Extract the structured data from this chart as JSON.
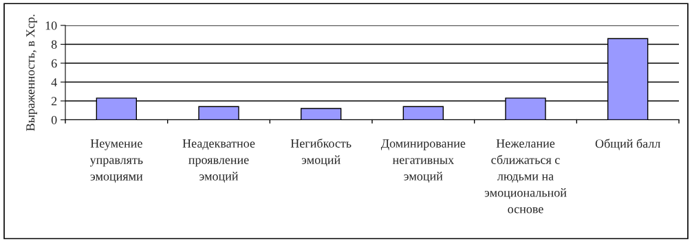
{
  "chart_data": {
    "type": "bar",
    "ylabel": "Выраженность, в Хср.",
    "categories": [
      "Неумение\nуправлять\nэмоциями",
      "Неадекватное\nпроявление\nэмоций",
      "Негибкость\nэмоций",
      "Доминирование\nнегативных\nэмоций",
      "Нежелание\nсближаться с\nлюдьми на\nэмоциональной\nоснове",
      "Общий балл"
    ],
    "values": [
      2.3,
      1.4,
      1.2,
      1.4,
      2.3,
      8.6
    ],
    "color": "#9999ff",
    "ylim": [
      0,
      10
    ],
    "yticks": [
      0,
      2,
      4,
      6,
      8,
      10
    ],
    "grid": "y"
  }
}
